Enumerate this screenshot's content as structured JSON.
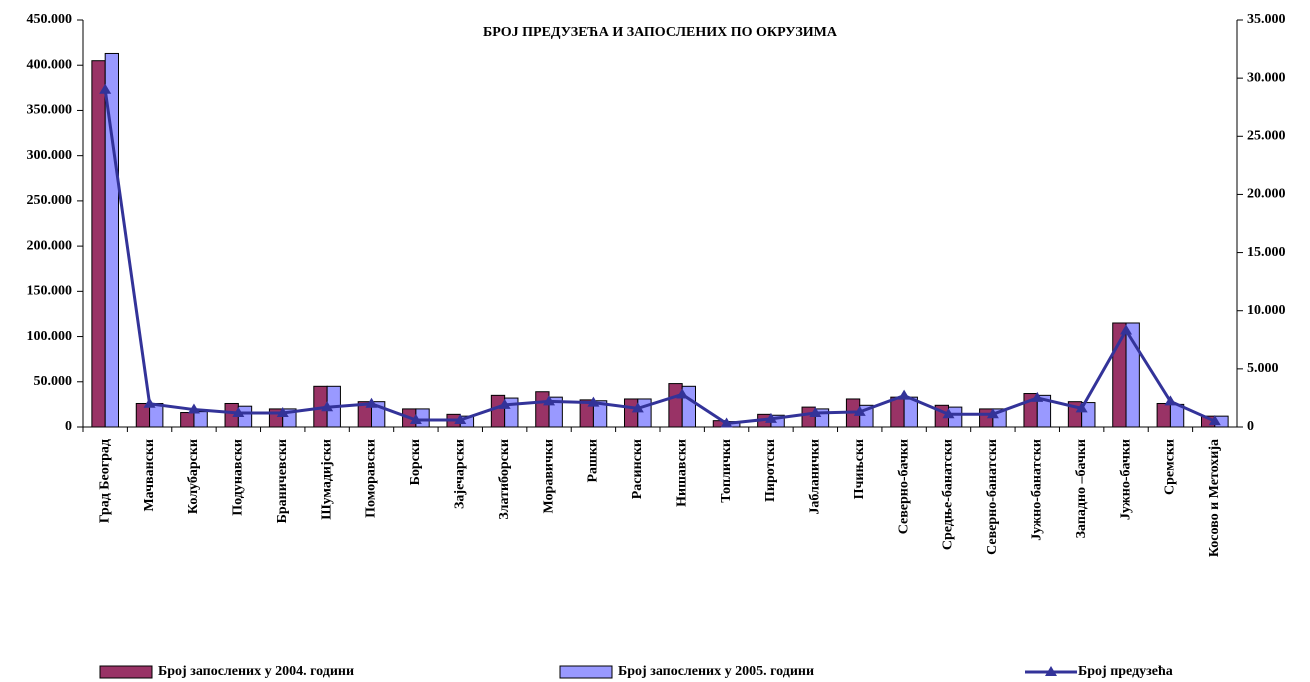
{
  "chart_data": {
    "type": "bar_line",
    "title": "БРОЈ ПРЕДУЗЕЋА И ЗАПОСЛЕНИХ ПО ОКРУЗИМА",
    "categories": [
      "Град Београд",
      "Мачвански",
      "Колубарски",
      "Подунавски",
      "Браничевски",
      "Шумадијски",
      "Поморавски",
      "Борски",
      "Зајечарски",
      "Златиборски",
      "Моравички",
      "Рашки",
      "Расински",
      "Нишавски",
      "Топлички",
      "Пиротски",
      "Јабланички",
      "Пчињски",
      "Северно-бачки",
      "Средње-банатски",
      "Северно-банатски",
      "Јужно-банатски",
      "Западно –бачки",
      "Јужно-бачки",
      "Сремски",
      "Косово и Метохија"
    ],
    "series": [
      {
        "name": "Број запослених у 2004. години",
        "color": "#993366",
        "type": "bar",
        "values": [
          405000,
          26000,
          16000,
          26000,
          20000,
          45000,
          28000,
          20000,
          14000,
          35000,
          39000,
          30000,
          31000,
          48000,
          7000,
          14000,
          22000,
          31000,
          33000,
          24000,
          20000,
          37000,
          28000,
          115000,
          26000,
          12000
        ]
      },
      {
        "name": "Број запослених у 2005. години",
        "color": "#9999ff",
        "type": "bar",
        "values": [
          413000,
          26000,
          17000,
          23000,
          20000,
          45000,
          28000,
          20000,
          12000,
          32000,
          33000,
          29000,
          31000,
          45000,
          6000,
          13000,
          20000,
          24000,
          33000,
          22000,
          20000,
          35000,
          27000,
          115000,
          25000,
          12000
        ]
      },
      {
        "name": "Број предузећа",
        "color": "#333399",
        "type": "line",
        "axis": "y2",
        "values": [
          29000,
          2000,
          1500,
          1200,
          1200,
          1700,
          2000,
          600,
          600,
          1900,
          2200,
          2100,
          1600,
          2800,
          300,
          700,
          1200,
          1300,
          2700,
          1100,
          1100,
          2500,
          1600,
          8300,
          2200,
          500
        ]
      }
    ],
    "ylim": [
      0,
      450000
    ],
    "yticks": [
      0,
      {
        "value": 50000,
        "label": "50.000"
      },
      {
        "value": 100000,
        "label": "100.000"
      },
      {
        "value": 150000,
        "label": "150.000"
      },
      {
        "value": 200000,
        "label": "200.000"
      },
      {
        "value": 250000,
        "label": "250.000"
      },
      {
        "value": 300000,
        "label": "300.000"
      },
      {
        "value": 350000,
        "label": "350.000"
      },
      {
        "value": 400000,
        "label": "400.000"
      },
      {
        "value": 450000,
        "label": "450.000"
      }
    ],
    "y2lim": [
      0,
      35000
    ],
    "y2ticks": [
      0,
      {
        "value": 5000,
        "label": "5.000"
      },
      {
        "value": 10000,
        "label": "10.000"
      },
      {
        "value": 15000,
        "label": "15.000"
      },
      {
        "value": 20000,
        "label": "20.000"
      },
      {
        "value": 25000,
        "label": "25.000"
      },
      {
        "value": 30000,
        "label": "30.000"
      },
      {
        "value": 35000,
        "label": "35.000"
      }
    ],
    "legend": "bottom"
  }
}
